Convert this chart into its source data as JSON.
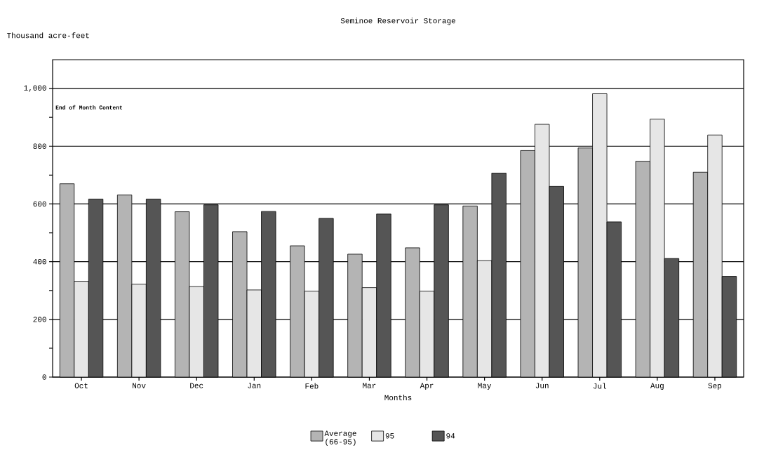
{
  "chart_data": {
    "type": "bar",
    "title": "Seminoe Reservoir Storage",
    "ylabel": "Thousand acre-feet",
    "xlabel": "Months",
    "annotations": [
      "End of Month Content"
    ],
    "categories": [
      "Oct",
      "Nov",
      "Dec",
      "Jan",
      "Feb",
      "Mar",
      "Apr",
      "May",
      "Jun",
      "Jul",
      "Aug",
      "Sep"
    ],
    "series": [
      {
        "name": "Average (66-95)",
        "color": "#b4b4b4",
        "values": [
          670,
          631,
          573,
          504,
          455,
          426,
          448,
          593,
          785,
          794,
          748,
          710
        ]
      },
      {
        "name": "95",
        "color": "#e6e6e6",
        "values": [
          332,
          322,
          314,
          302,
          298,
          310,
          298,
          404,
          876,
          982,
          894,
          839
        ]
      },
      {
        "name": "94",
        "color": "#555555",
        "values": [
          617,
          617,
          597,
          574,
          550,
          565,
          597,
          707,
          661,
          538,
          411,
          349
        ]
      }
    ],
    "ylim": [
      0,
      1100
    ],
    "yticks": [
      0,
      {
        "value": 100,
        "label": null
      },
      200,
      {
        "value": 300,
        "label": null
      },
      400,
      {
        "value": 500,
        "label": null
      },
      600,
      {
        "value": 700,
        "label": null
      },
      800,
      {
        "value": 900,
        "label": null
      },
      {
        "value": 1000,
        "label": "1,000"
      }
    ],
    "grid": "y",
    "legend": "bottom"
  }
}
